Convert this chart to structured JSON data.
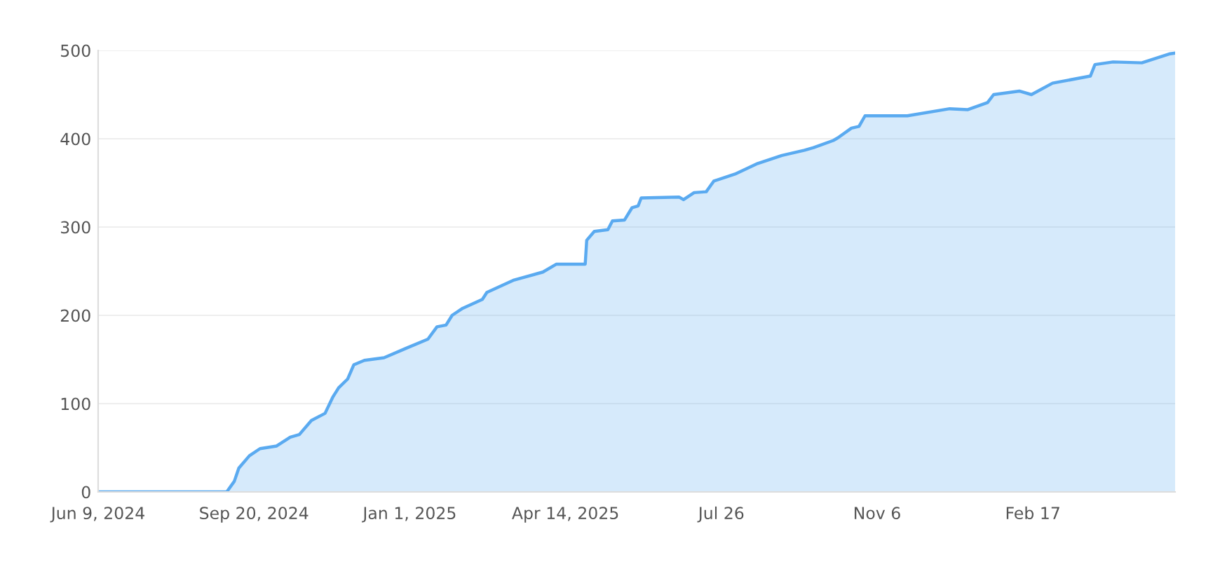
{
  "chart_data": {
    "type": "area",
    "x": [
      "2024-06-09",
      "2024-09-02",
      "2024-09-07",
      "2024-09-10",
      "2024-09-17",
      "2024-09-24",
      "2024-10-05",
      "2024-10-14",
      "2024-10-20",
      "2024-10-28",
      "2024-11-06",
      "2024-11-11",
      "2024-11-15",
      "2024-11-21",
      "2024-11-25",
      "2024-12-02",
      "2024-12-15",
      "2024-12-30",
      "2025-01-13",
      "2025-01-19",
      "2025-01-25",
      "2025-01-29",
      "2025-02-05",
      "2025-02-18",
      "2025-02-21",
      "2025-03-11",
      "2025-03-30",
      "2025-04-08",
      "2025-04-27",
      "2025-04-28",
      "2025-05-03",
      "2025-05-12",
      "2025-05-15",
      "2025-05-23",
      "2025-05-28",
      "2025-06-01",
      "2025-06-03",
      "2025-06-28",
      "2025-07-01",
      "2025-07-08",
      "2025-07-16",
      "2025-07-21",
      "2025-08-04",
      "2025-08-19",
      "2025-09-04",
      "2025-09-19",
      "2025-09-25",
      "2025-10-08",
      "2025-10-11",
      "2025-10-20",
      "2025-10-25",
      "2025-10-29",
      "2025-11-26",
      "2025-12-24",
      "2026-01-05",
      "2026-01-18",
      "2026-01-22",
      "2026-02-08",
      "2026-02-16",
      "2026-03-02",
      "2026-03-27",
      "2026-03-30",
      "2026-04-11",
      "2026-04-30",
      "2026-05-18",
      "2026-05-22"
    ],
    "series": [
      {
        "color": "#5aaaf0",
        "values": [
          0,
          0,
          12,
          27,
          41,
          49,
          52,
          62,
          65,
          81,
          89,
          107,
          118,
          128,
          144,
          149,
          152,
          163,
          173,
          187,
          189,
          200,
          208,
          218,
          226,
          240,
          249,
          258,
          258,
          285,
          295,
          297,
          307,
          308,
          322,
          324,
          333,
          334,
          331,
          339,
          340,
          352,
          360,
          372,
          381,
          387,
          390,
          398,
          401,
          412,
          414,
          426,
          426,
          434,
          433,
          441,
          450,
          454,
          450,
          463,
          471,
          484,
          487,
          486,
          496,
          497
        ]
      }
    ],
    "xlim": [
      "2024-06-09",
      "2026-05-22"
    ],
    "xticks": [
      {
        "value": "2024-06-09",
        "label": "Jun 9, 2024"
      },
      {
        "value": "2024-09-20",
        "label": "Sep 20, 2024"
      },
      {
        "value": "2025-01-01",
        "label": "Jan 1, 2025"
      },
      {
        "value": "2025-04-14",
        "label": "Apr 14, 2025"
      },
      {
        "value": "2025-07-26",
        "label": "Jul 26"
      },
      {
        "value": "2025-11-06",
        "label": "Nov 6"
      },
      {
        "value": "2026-02-17",
        "label": "Feb 17"
      }
    ],
    "ylim": [
      0,
      500
    ],
    "yticks": [
      0,
      100,
      200,
      300,
      400,
      500
    ],
    "grid": "y"
  }
}
